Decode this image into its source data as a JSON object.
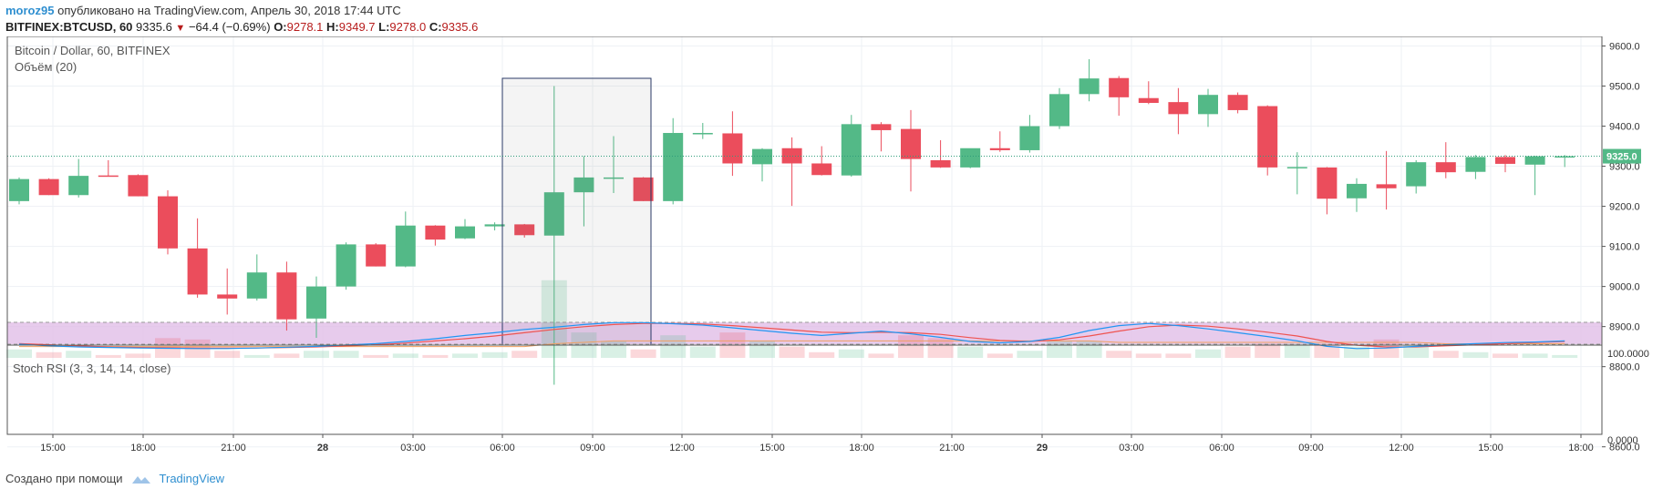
{
  "header": {
    "user": "moroz95",
    "published": "опубликовано на TradingView.com, Апрель 30, 2018 17:44 UTC",
    "symbol": "BITFINEX:BTCUSD, 60",
    "last": "9335.6",
    "change": "−64.4 (−0.69%)",
    "o_label": "O:",
    "o": "9278.1",
    "h_label": "H:",
    "h": "9349.7",
    "l_label": "L:",
    "l": "9278.0",
    "c_label": "C:",
    "c": "9335.6"
  },
  "legend": {
    "title": "Bitcoin / Dollar, 60, BITFINEX",
    "volume": "Объём (20)"
  },
  "stoch": {
    "label": "Stoch RSI (3, 3, 14, 14, close)",
    "tick_high": "100.0000",
    "tick_low": "0.0000"
  },
  "price_tag": "9325.0",
  "footer": {
    "created": "Создано при помощи",
    "brand": "TradingView"
  },
  "colors": {
    "up": "#53b987",
    "down": "#eb4d5c",
    "stoch_band": "#e1bee7",
    "k_line": "#2196f3",
    "d_line": "#ef5350",
    "ma": "#f0a060"
  },
  "chart_data": {
    "type": "candlestick",
    "title": "Bitcoin / Dollar, 60, BITFINEX",
    "ylim": [
      8550,
      9620
    ],
    "y_ticks": [
      "9600.0",
      "9500.0",
      "9400.0",
      "9300.0",
      "9200.0",
      "9100.0",
      "9000.0",
      "8900.0",
      "8800.0",
      "8600.0"
    ],
    "x_ticks": [
      "15:00",
      "18:00",
      "21:00",
      "28",
      "03:00",
      "06:00",
      "09:00",
      "12:00",
      "15:00",
      "18:00",
      "21:00",
      "29",
      "03:00",
      "06:00",
      "09:00",
      "12:00",
      "15:00",
      "18:00"
    ],
    "current_price": 9325.0,
    "ohlc": [
      [
        9213,
        9272,
        9205,
        9268
      ],
      [
        9268,
        9270,
        9228,
        9228
      ],
      [
        9228,
        9318,
        9222,
        9276
      ],
      [
        9277,
        9315,
        9274,
        9276
      ],
      [
        9278,
        9280,
        9225,
        9225
      ],
      [
        9225,
        9240,
        9080,
        9095
      ],
      [
        9095,
        9170,
        8972,
        8980
      ],
      [
        8980,
        9045,
        8930,
        8970
      ],
      [
        8970,
        9080,
        8965,
        9035
      ],
      [
        9035,
        9062,
        8890,
        8918
      ],
      [
        8920,
        9025,
        8872,
        9000
      ],
      [
        9000,
        9110,
        8992,
        9105
      ],
      [
        9105,
        9108,
        9050,
        9050
      ],
      [
        9050,
        9187,
        9048,
        9152
      ],
      [
        9152,
        9153,
        9102,
        9117
      ],
      [
        9120,
        9168,
        9118,
        9150
      ],
      [
        9150,
        9160,
        9140,
        9155
      ],
      [
        9155,
        9156,
        9122,
        9128
      ],
      [
        9127,
        9500,
        8755,
        9235
      ],
      [
        9235,
        9325,
        9150,
        9272
      ],
      [
        9272,
        9375,
        9233,
        9272
      ],
      [
        9272,
        9273,
        9213,
        9213
      ],
      [
        9213,
        9420,
        9205,
        9383
      ],
      [
        9380,
        9408,
        9368,
        9383
      ],
      [
        9382,
        9437,
        9276,
        9307
      ],
      [
        9305,
        9345,
        9262,
        9343
      ],
      [
        9345,
        9372,
        9201,
        9307
      ],
      [
        9307,
        9350,
        9277,
        9278
      ],
      [
        9277,
        9428,
        9274,
        9405
      ],
      [
        9405,
        9410,
        9337,
        9390
      ],
      [
        9393,
        9440,
        9237,
        9318
      ],
      [
        9315,
        9365,
        9296,
        9297
      ],
      [
        9297,
        9340,
        9295,
        9345
      ],
      [
        9345,
        9387,
        9336,
        9340
      ],
      [
        9340,
        9428,
        9334,
        9400
      ],
      [
        9400,
        9495,
        9393,
        9480
      ],
      [
        9480,
        9567,
        9462,
        9519
      ],
      [
        9520,
        9525,
        9426,
        9472
      ],
      [
        9470,
        9512,
        9455,
        9458
      ],
      [
        9460,
        9495,
        9380,
        9430
      ],
      [
        9430,
        9493,
        9398,
        9478
      ],
      [
        9478,
        9484,
        9432,
        9440
      ],
      [
        9450,
        9452,
        9277,
        9297
      ],
      [
        9297,
        9335,
        9230,
        9298
      ],
      [
        9297,
        9298,
        9180,
        9219
      ],
      [
        9220,
        9270,
        9186,
        9256
      ],
      [
        9255,
        9338,
        9192,
        9245
      ],
      [
        9250,
        9315,
        9232,
        9310
      ],
      [
        9310,
        9360,
        9270,
        9285
      ],
      [
        9286,
        9328,
        9268,
        9323
      ],
      [
        9323,
        9328,
        9285,
        9306
      ],
      [
        9304,
        9326,
        9228,
        9325
      ],
      [
        9322,
        9328,
        9298,
        9325
      ]
    ],
    "volume": [
      6,
      4,
      5,
      2,
      3,
      14,
      13,
      5,
      2,
      3,
      5,
      5,
      2,
      3,
      2,
      3,
      4,
      5,
      55,
      18,
      12,
      6,
      16,
      8,
      18,
      12,
      8,
      4,
      6,
      3,
      16,
      14,
      8,
      3,
      5,
      12,
      12,
      5,
      3,
      3,
      6,
      8,
      10,
      10,
      10,
      8,
      13,
      9,
      5,
      4,
      3,
      3,
      2
    ],
    "volume_ma": [
      8,
      8,
      8,
      8,
      8,
      8,
      8,
      8,
      8,
      8,
      8,
      8,
      8,
      8,
      8,
      8,
      8,
      8,
      10,
      11,
      12,
      12,
      12,
      12,
      12,
      12,
      12,
      12,
      12,
      12,
      12,
      12,
      12,
      12,
      12,
      12,
      12,
      11,
      11,
      11,
      11,
      11,
      11,
      11,
      11,
      11,
      11,
      11,
      10,
      10,
      10,
      10,
      10
    ],
    "stoch_k": [
      20,
      14,
      10,
      8,
      6,
      5,
      4,
      4,
      6,
      9,
      12,
      17,
      22,
      30,
      40,
      52,
      62,
      74,
      82,
      92,
      99,
      99,
      95,
      90,
      80,
      70,
      60,
      52,
      60,
      68,
      58,
      45,
      30,
      25,
      30,
      45,
      70,
      88,
      96,
      88,
      76,
      62,
      48,
      32,
      12,
      4,
      6,
      12,
      18,
      22,
      26,
      28,
      32
    ],
    "stoch_d": [
      22,
      18,
      14,
      10,
      8,
      7,
      6,
      6,
      6,
      8,
      10,
      14,
      18,
      24,
      32,
      40,
      50,
      62,
      74,
      84,
      92,
      96,
      96,
      94,
      88,
      80,
      72,
      64,
      62,
      64,
      62,
      56,
      44,
      34,
      30,
      36,
      50,
      68,
      84,
      90,
      86,
      76,
      64,
      50,
      30,
      16,
      10,
      10,
      14,
      18,
      22,
      26,
      30
    ]
  }
}
